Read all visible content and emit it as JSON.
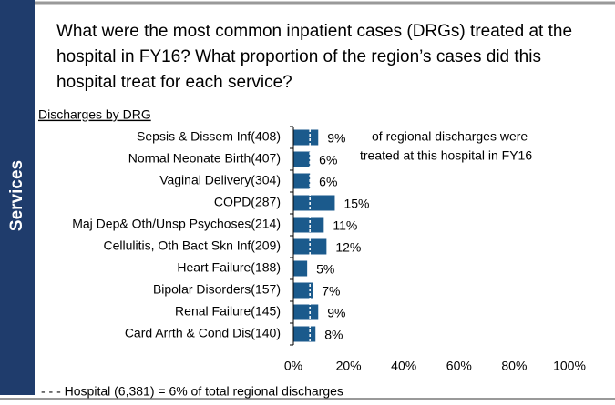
{
  "chart_data": {
    "type": "barh",
    "sidebar": "Services",
    "title": [
      "What were the most common inpatient cases (DRGs) treated at the",
      "hospital in FY16? What proportion of the region’s cases did this",
      "hospital treat for each service?"
    ],
    "subtitle": "Discharges by DRG",
    "categories": [
      "Sepsis & Dissem Inf(408)",
      "Normal Neonate Birth(407)",
      "Vaginal Delivery(304)",
      "COPD(287)",
      "Maj Dep& Oth/Unsp Psychoses(214)",
      "Cellulitis, Oth Bact Skn Inf(209)",
      "Heart Failure(188)",
      "Bipolar Disorders(157)",
      "Renal Failure(145)",
      "Card Arrth & Cond Dis(140)"
    ],
    "values": [
      9,
      6,
      6,
      15,
      11,
      12,
      5,
      7,
      9,
      8
    ],
    "value_labels": [
      "9%",
      "6%",
      "6%",
      "15%",
      "11%",
      "12%",
      "5%",
      "7%",
      "9%",
      "8%"
    ],
    "color": "#1b5a8c",
    "xlim": [
      0,
      100
    ],
    "xticks": [
      {
        "value": 0,
        "label": "0%"
      },
      {
        "value": 20,
        "label": "20%"
      },
      {
        "value": 40,
        "label": "40%"
      },
      {
        "value": 60,
        "label": "60%"
      },
      {
        "value": 80,
        "label": "80%"
      },
      {
        "value": 100,
        "label": "100%"
      }
    ],
    "reference_line": 6,
    "annotation": [
      "of regional discharges were",
      "treated at this hospital in FY16"
    ],
    "footnote": "- - -  Hospital  (6,381) = 6%  of total regional  discharges"
  }
}
